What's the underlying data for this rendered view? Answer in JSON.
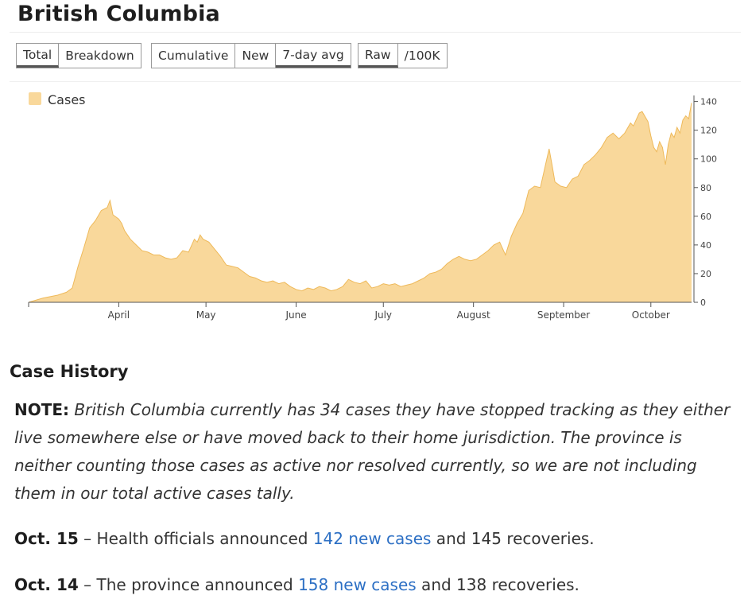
{
  "page": {
    "title": "British Columbia"
  },
  "controls": {
    "group1": [
      {
        "label": "Total",
        "active": true
      },
      {
        "label": "Breakdown",
        "active": false
      }
    ],
    "group2": [
      {
        "label": "Cumulative",
        "active": false
      },
      {
        "label": "New",
        "active": false
      },
      {
        "label": "7-day avg",
        "active": true
      }
    ],
    "group3": [
      {
        "label": "Raw",
        "active": true
      },
      {
        "label": "/100K",
        "active": false
      }
    ]
  },
  "chart_data": {
    "type": "area",
    "x_start": "2020-03-01",
    "x_end": "2020-10-15",
    "x_ticks": [
      {
        "label": "April",
        "date": "2020-04-01"
      },
      {
        "label": "May",
        "date": "2020-05-01"
      },
      {
        "label": "June",
        "date": "2020-06-01"
      },
      {
        "label": "July",
        "date": "2020-07-01"
      },
      {
        "label": "August",
        "date": "2020-08-01"
      },
      {
        "label": "September",
        "date": "2020-09-01"
      },
      {
        "label": "October",
        "date": "2020-10-01"
      }
    ],
    "y_ticks": [
      0,
      20,
      40,
      60,
      80,
      100,
      120,
      140
    ],
    "ylim": [
      0,
      142
    ],
    "y_axis_side": "right",
    "legend_position": "top-left",
    "series": [
      {
        "name": "Cases",
        "color": "#f9d89b",
        "stroke": "#eeb95a",
        "points": [
          [
            "2020-03-01",
            0
          ],
          [
            "2020-03-06",
            3
          ],
          [
            "2020-03-11",
            5
          ],
          [
            "2020-03-14",
            7
          ],
          [
            "2020-03-16",
            10
          ],
          [
            "2020-03-18",
            25
          ],
          [
            "2020-03-20",
            38
          ],
          [
            "2020-03-22",
            52
          ],
          [
            "2020-03-24",
            57
          ],
          [
            "2020-03-26",
            64
          ],
          [
            "2020-03-28",
            66
          ],
          [
            "2020-03-29",
            71
          ],
          [
            "2020-03-30",
            61
          ],
          [
            "2020-04-01",
            58
          ],
          [
            "2020-04-02",
            55
          ],
          [
            "2020-04-03",
            50
          ],
          [
            "2020-04-05",
            44
          ],
          [
            "2020-04-07",
            40
          ],
          [
            "2020-04-09",
            36
          ],
          [
            "2020-04-11",
            35
          ],
          [
            "2020-04-13",
            33
          ],
          [
            "2020-04-15",
            33
          ],
          [
            "2020-04-17",
            31
          ],
          [
            "2020-04-19",
            30
          ],
          [
            "2020-04-21",
            31
          ],
          [
            "2020-04-23",
            36
          ],
          [
            "2020-04-25",
            35
          ],
          [
            "2020-04-27",
            44
          ],
          [
            "2020-04-28",
            42
          ],
          [
            "2020-04-29",
            47
          ],
          [
            "2020-04-30",
            44
          ],
          [
            "2020-05-02",
            42
          ],
          [
            "2020-05-04",
            37
          ],
          [
            "2020-05-06",
            32
          ],
          [
            "2020-05-08",
            26
          ],
          [
            "2020-05-10",
            25
          ],
          [
            "2020-05-12",
            24
          ],
          [
            "2020-05-14",
            21
          ],
          [
            "2020-05-16",
            18
          ],
          [
            "2020-05-18",
            17
          ],
          [
            "2020-05-20",
            15
          ],
          [
            "2020-05-22",
            14
          ],
          [
            "2020-05-24",
            15
          ],
          [
            "2020-05-26",
            13
          ],
          [
            "2020-05-28",
            14
          ],
          [
            "2020-05-30",
            11
          ],
          [
            "2020-06-01",
            9
          ],
          [
            "2020-06-03",
            8
          ],
          [
            "2020-06-05",
            10
          ],
          [
            "2020-06-07",
            9
          ],
          [
            "2020-06-09",
            11
          ],
          [
            "2020-06-11",
            10
          ],
          [
            "2020-06-13",
            8
          ],
          [
            "2020-06-15",
            9
          ],
          [
            "2020-06-17",
            11
          ],
          [
            "2020-06-19",
            16
          ],
          [
            "2020-06-21",
            14
          ],
          [
            "2020-06-23",
            13
          ],
          [
            "2020-06-25",
            15
          ],
          [
            "2020-06-27",
            10
          ],
          [
            "2020-06-29",
            11
          ],
          [
            "2020-07-01",
            13
          ],
          [
            "2020-07-03",
            12
          ],
          [
            "2020-07-05",
            13
          ],
          [
            "2020-07-07",
            11
          ],
          [
            "2020-07-09",
            12
          ],
          [
            "2020-07-11",
            13
          ],
          [
            "2020-07-13",
            15
          ],
          [
            "2020-07-15",
            17
          ],
          [
            "2020-07-17",
            20
          ],
          [
            "2020-07-19",
            21
          ],
          [
            "2020-07-21",
            23
          ],
          [
            "2020-07-23",
            27
          ],
          [
            "2020-07-25",
            30
          ],
          [
            "2020-07-27",
            32
          ],
          [
            "2020-07-29",
            30
          ],
          [
            "2020-07-31",
            29
          ],
          [
            "2020-08-02",
            30
          ],
          [
            "2020-08-04",
            33
          ],
          [
            "2020-08-06",
            36
          ],
          [
            "2020-08-08",
            40
          ],
          [
            "2020-08-10",
            42
          ],
          [
            "2020-08-12",
            33
          ],
          [
            "2020-08-14",
            46
          ],
          [
            "2020-08-16",
            55
          ],
          [
            "2020-08-18",
            62
          ],
          [
            "2020-08-20",
            78
          ],
          [
            "2020-08-22",
            81
          ],
          [
            "2020-08-24",
            80
          ],
          [
            "2020-08-26",
            98
          ],
          [
            "2020-08-27",
            107
          ],
          [
            "2020-08-28",
            96
          ],
          [
            "2020-08-29",
            84
          ],
          [
            "2020-08-31",
            81
          ],
          [
            "2020-09-02",
            80
          ],
          [
            "2020-09-04",
            86
          ],
          [
            "2020-09-06",
            88
          ],
          [
            "2020-09-08",
            96
          ],
          [
            "2020-09-10",
            99
          ],
          [
            "2020-09-12",
            103
          ],
          [
            "2020-09-14",
            108
          ],
          [
            "2020-09-16",
            115
          ],
          [
            "2020-09-18",
            118
          ],
          [
            "2020-09-20",
            114
          ],
          [
            "2020-09-22",
            118
          ],
          [
            "2020-09-24",
            125
          ],
          [
            "2020-09-25",
            123
          ],
          [
            "2020-09-27",
            132
          ],
          [
            "2020-09-28",
            133
          ],
          [
            "2020-09-30",
            126
          ],
          [
            "2020-10-01",
            116
          ],
          [
            "2020-10-02",
            108
          ],
          [
            "2020-10-03",
            105
          ],
          [
            "2020-10-04",
            112
          ],
          [
            "2020-10-05",
            108
          ],
          [
            "2020-10-06",
            96
          ],
          [
            "2020-10-07",
            110
          ],
          [
            "2020-10-08",
            118
          ],
          [
            "2020-10-09",
            115
          ],
          [
            "2020-10-10",
            122
          ],
          [
            "2020-10-11",
            118
          ],
          [
            "2020-10-12",
            127
          ],
          [
            "2020-10-13",
            130
          ],
          [
            "2020-10-14",
            128
          ],
          [
            "2020-10-15",
            139
          ]
        ]
      }
    ]
  },
  "history": {
    "title": "Case History",
    "note_label": "NOTE:",
    "note_text": "British Columbia currently has 34 cases they have stopped tracking as they either live somewhere else or have moved back to their home jurisdiction. The province is neither counting those cases as active nor resolved currently, so we are not including them in our total active cases tally.",
    "entries": [
      {
        "date": "Oct. 15",
        "before": " – Health officials announced ",
        "link": "142 new cases",
        "after": " and 145 recoveries."
      },
      {
        "date": "Oct. 14",
        "before": " – The province announced ",
        "link": "158 new cases",
        "after": " and 138 recoveries."
      }
    ]
  }
}
